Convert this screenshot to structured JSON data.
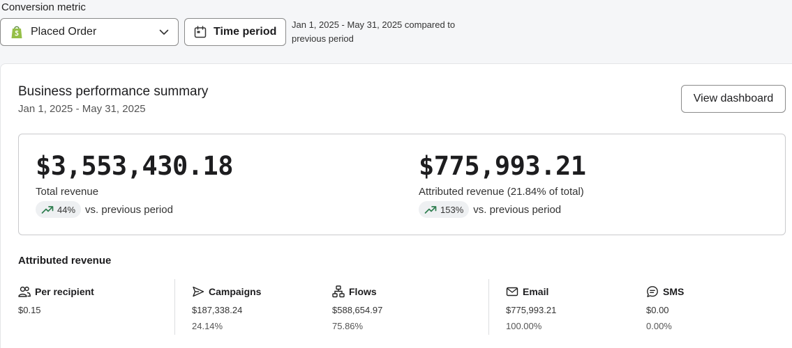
{
  "filters": {
    "conversion_metric_label": "Conversion metric",
    "conversion_metric_value": "Placed Order",
    "time_period_label": "Time period",
    "range_note": "Jan 1, 2025 - May 31, 2025 compared to previous period"
  },
  "summary": {
    "title": "Business performance summary",
    "date_range": "Jan 1, 2025 - May 31, 2025",
    "view_dashboard_label": "View dashboard",
    "total_revenue": {
      "value": "$3,553,430.18",
      "label": "Total revenue",
      "change": "44%",
      "comparison": "vs. previous period"
    },
    "attributed_revenue": {
      "value": "$775,993.21",
      "label": "Attributed revenue (21.84% of total)",
      "change": "153%",
      "comparison": "vs. previous period"
    }
  },
  "attributed": {
    "title": "Attributed revenue",
    "columns": [
      {
        "icon": "people-icon",
        "label": "Per recipient",
        "value": "$0.15",
        "percent": ""
      },
      {
        "icon": "send-icon",
        "label": "Campaigns",
        "value": "$187,338.24",
        "percent": "24.14%"
      },
      {
        "icon": "flows-icon",
        "label": "Flows",
        "value": "$588,654.97",
        "percent": "75.86%"
      },
      {
        "icon": "email-icon",
        "label": "Email",
        "value": "$775,993.21",
        "percent": "100.00%"
      },
      {
        "icon": "sms-icon",
        "label": "SMS",
        "value": "$0.00",
        "percent": "0.00%"
      }
    ]
  },
  "colors": {
    "trend_up": "#2e7d4f",
    "shopify_green": "#95bf47",
    "border": "#8a8a8a"
  }
}
